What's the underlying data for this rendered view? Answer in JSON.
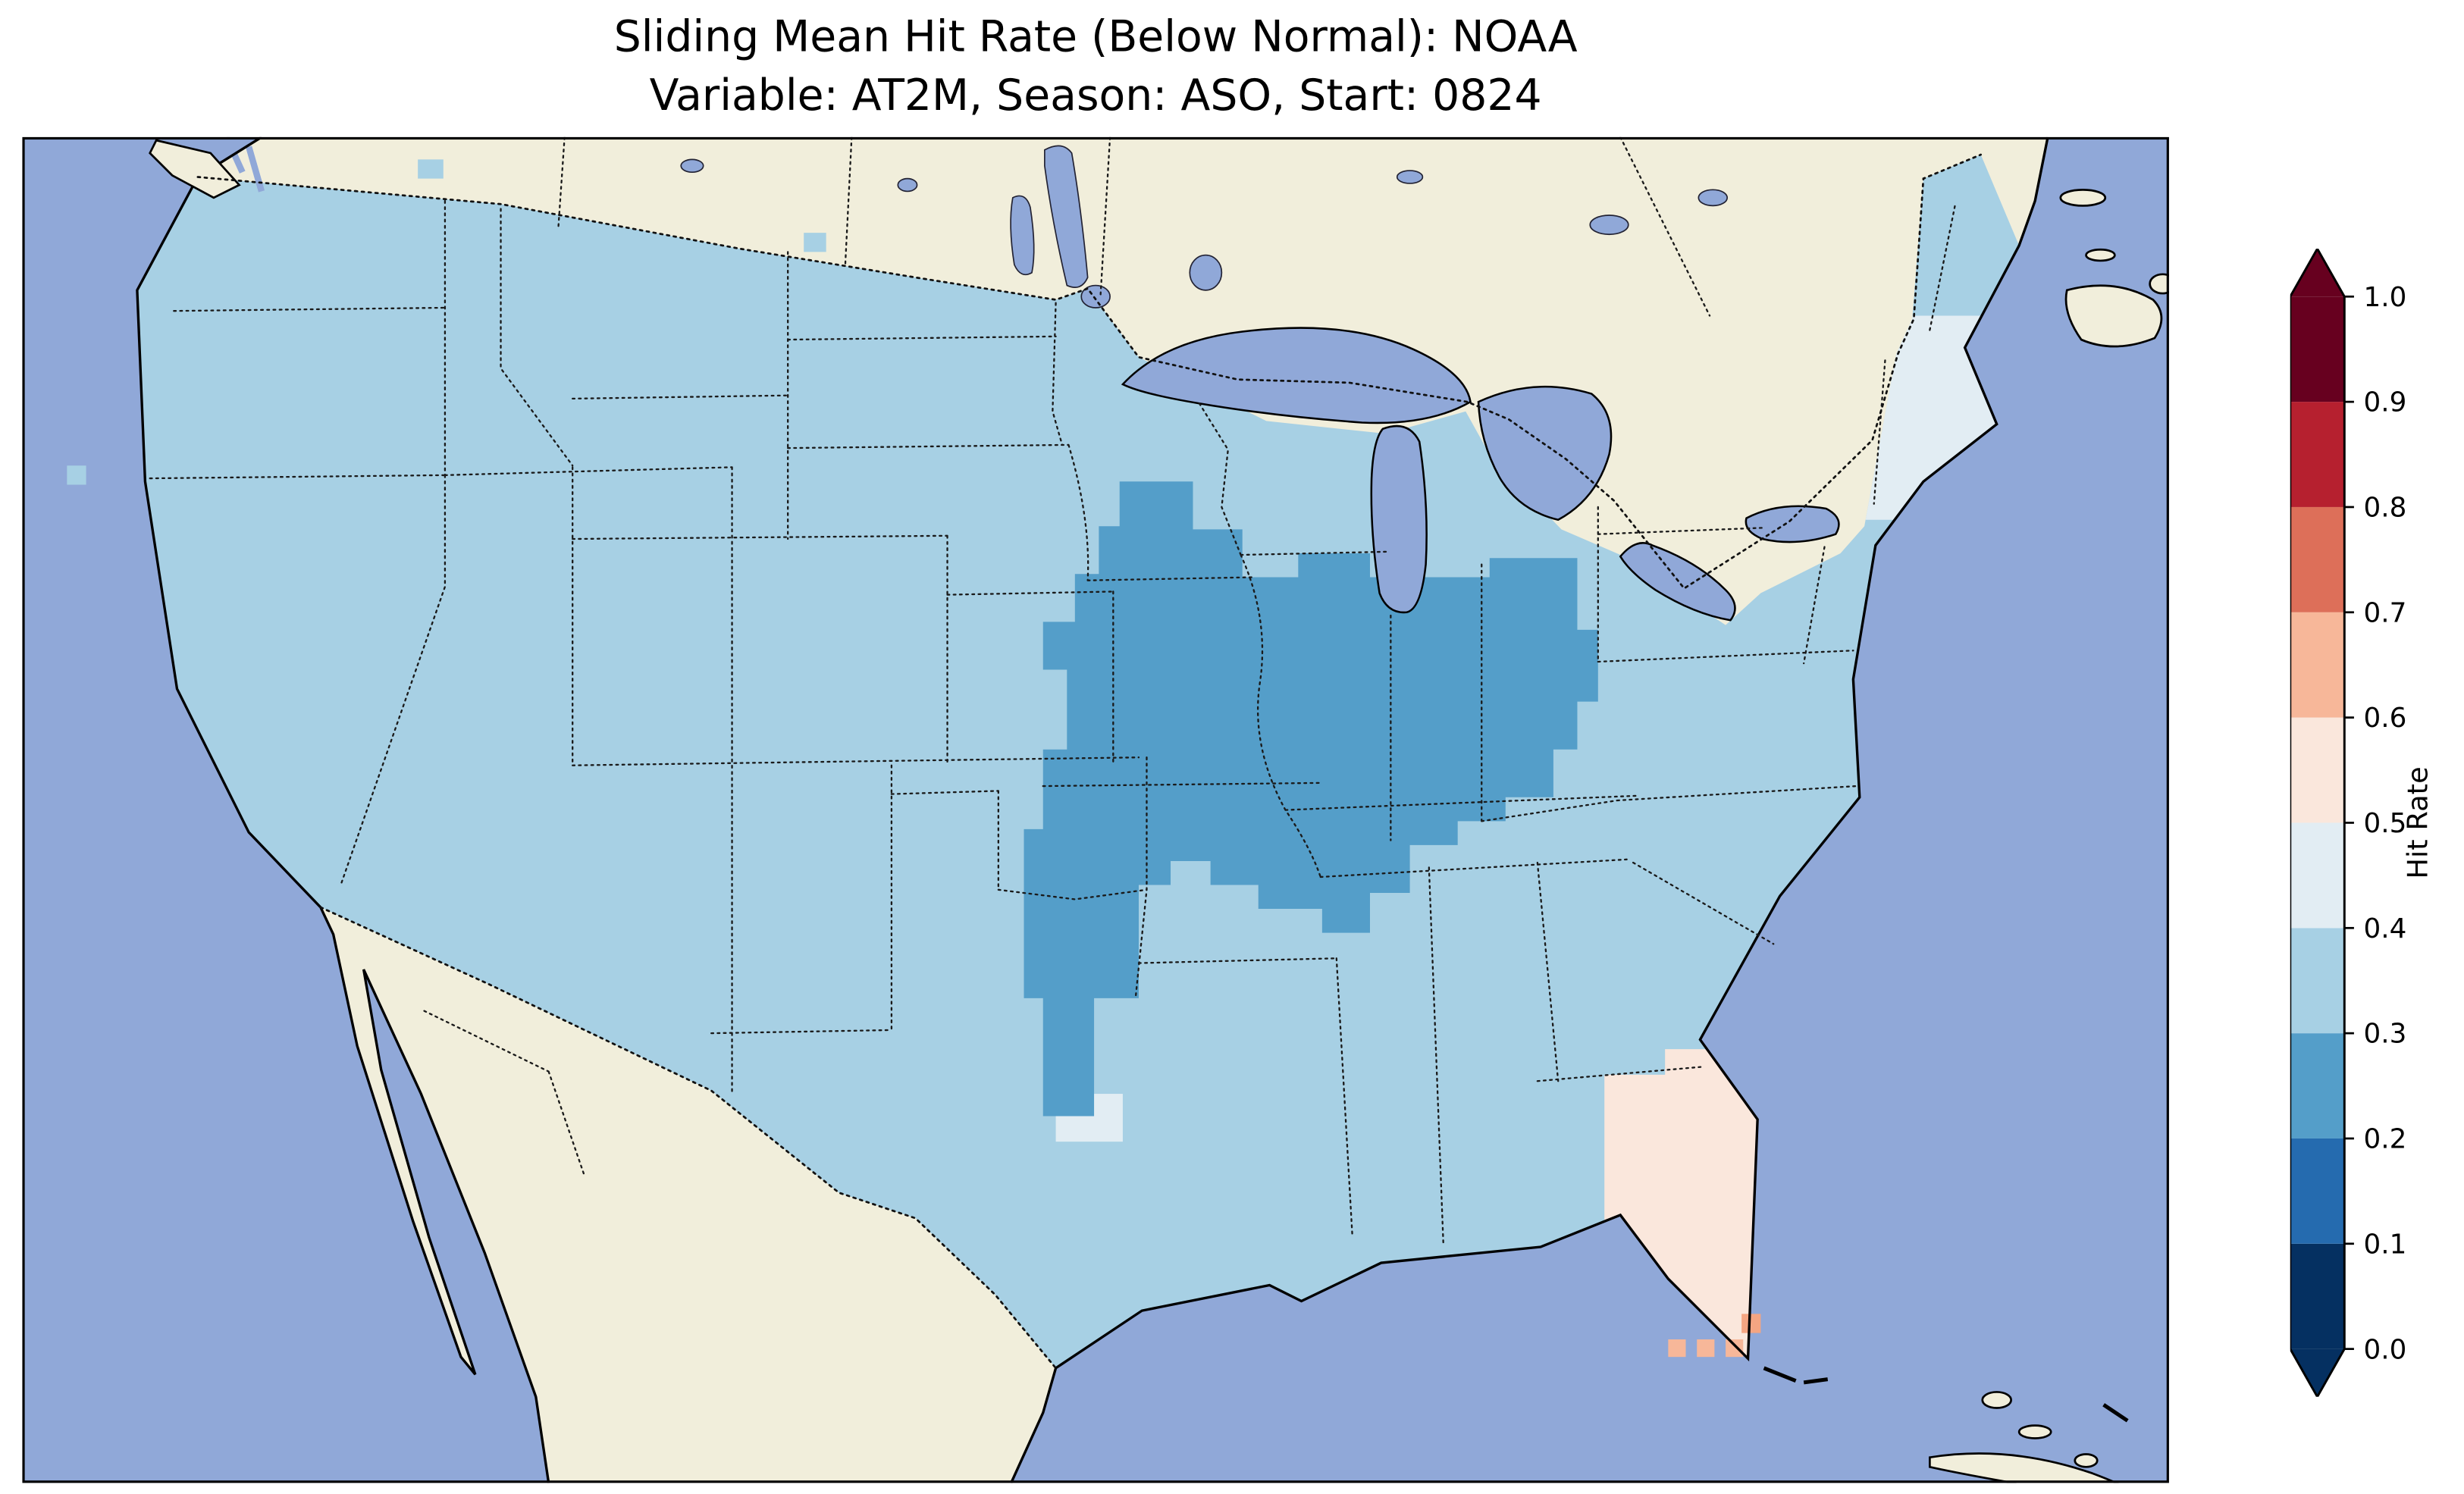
{
  "title": {
    "line1": "Sliding Mean Hit Rate (Below Normal): NOAA",
    "line2": "Variable: AT2M, Season: ASO, Start: 0824"
  },
  "colorbar": {
    "label": "Hit Rate",
    "ticks": [
      "1.0",
      "0.9",
      "0.8",
      "0.7",
      "0.6",
      "0.5",
      "0.4",
      "0.3",
      "0.2",
      "0.1",
      "0.0"
    ],
    "bands_bottom_to_top": [
      {
        "range": [
          0.0,
          0.1
        ],
        "color": "#053061"
      },
      {
        "range": [
          0.1,
          0.2
        ],
        "color": "#256baf"
      },
      {
        "range": [
          0.2,
          0.3
        ],
        "color": "#549ec9"
      },
      {
        "range": [
          0.3,
          0.4
        ],
        "color": "#a7d0e4"
      },
      {
        "range": [
          0.4,
          0.5
        ],
        "color": "#e2edf3"
      },
      {
        "range": [
          0.5,
          0.6
        ],
        "color": "#fae7dc"
      },
      {
        "range": [
          0.6,
          0.7
        ],
        "color": "#f7b799"
      },
      {
        "range": [
          0.7,
          0.8
        ],
        "color": "#dd6f59"
      },
      {
        "range": [
          0.8,
          0.9
        ],
        "color": "#b6202f"
      },
      {
        "range": [
          0.9,
          1.0
        ],
        "color": "#67001f"
      }
    ],
    "extend_under_color": "#053061",
    "extend_over_color": "#67001f"
  },
  "map": {
    "colors": {
      "ocean": "#90a8d8",
      "water": "#90a8d8",
      "land": "#f1eedb",
      "us_base": "#a7d0e4",
      "midwest": "#549ec9",
      "pale": "#e2edf3",
      "florida": "#fae7dc",
      "keys": "#f4a582",
      "keys_light": "#f7b799",
      "coastline": "#000000",
      "border_dots": "#1a1a1a"
    },
    "border_style": "dotted"
  },
  "chart_data": {
    "type": "heatmap",
    "title": "Sliding Mean Hit Rate (Below Normal): NOAA",
    "subtitle": "Variable: AT2M, Season: ASO, Start: 0824",
    "metric": "Sliding Mean Hit Rate (Below Normal)",
    "source": "NOAA",
    "variable": "AT2M",
    "season": "ASO",
    "start": "0824",
    "colorbar_label": "Hit Rate",
    "levels": [
      0.0,
      0.1,
      0.2,
      0.3,
      0.4,
      0.5,
      0.6,
      0.7,
      0.8,
      0.9,
      1.0
    ],
    "colormap": "RdBu_r, discrete 0.1 bands, extended both ends",
    "legend_position": "right",
    "map_extent": "Contiguous United States with surrounding Canada, Mexico, Gulf of Mexico, Caribbean",
    "regions": [
      {
        "area": "Most of the contiguous United States",
        "hit_rate_band": "0.3–0.4",
        "color": "#a7d0e4"
      },
      {
        "area": "Central Midwest: Missouri, Illinois, Indiana, Ohio, southeastern Iowa, northern Arkansas, western Kentucky/Tennessee edge",
        "hit_rate_band": "0.2–0.3",
        "color": "#549ec9"
      },
      {
        "area": "Northeast: upstate New York and New England",
        "hit_rate_band": "0.4–0.5",
        "color": "#e2edf3"
      },
      {
        "area": "Scattered cells in central Texas",
        "hit_rate_band": "0.4–0.5",
        "color": "#e2edf3"
      },
      {
        "area": "Florida peninsula",
        "hit_rate_band": "0.5–0.6",
        "color": "#fae7dc"
      },
      {
        "area": "South Florida / Keys scattered cells",
        "hit_rate_band": "0.6–0.7",
        "color": "#f7b799"
      },
      {
        "area": "Canada, Mexico, oceans",
        "hit_rate_band": "no data (base map)",
        "color": "#f1eedb"
      }
    ]
  }
}
